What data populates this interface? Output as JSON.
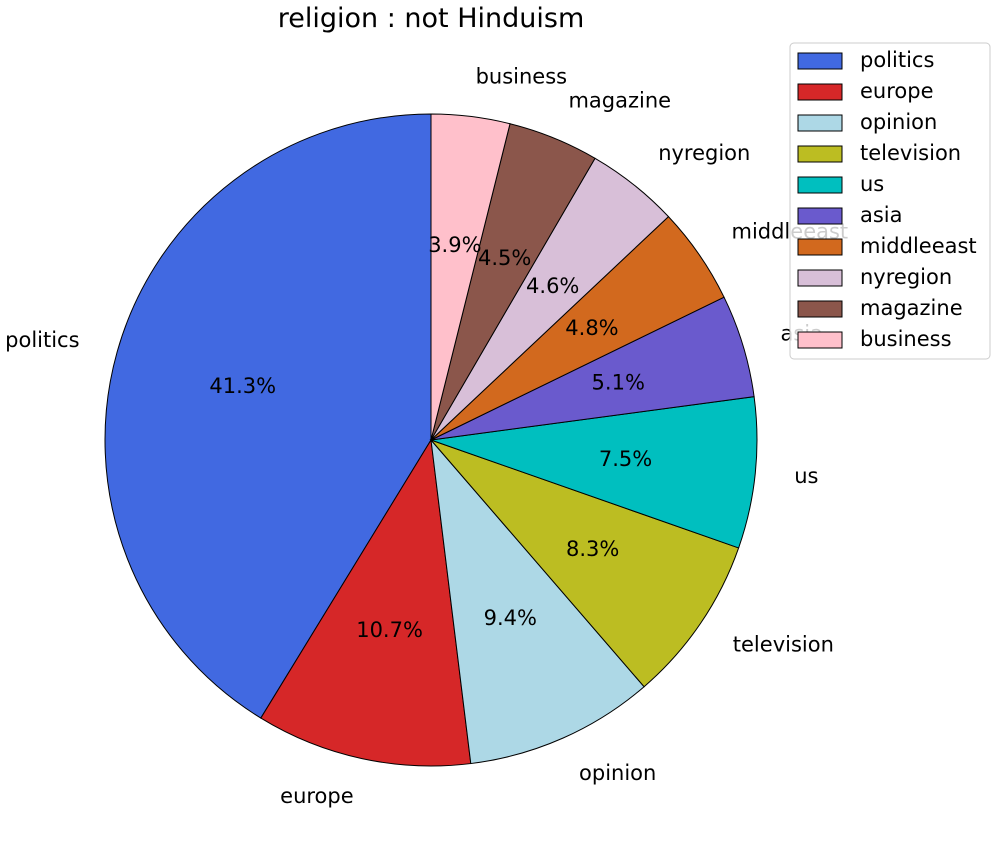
{
  "chart_data": {
    "type": "pie",
    "title": "religion : not Hinduism",
    "start_angle_deg": 90,
    "direction": "counterclockwise",
    "legend_position": "top-right",
    "slices": [
      {
        "label": "politics",
        "value": 41.3,
        "pct_label": "41.3%",
        "color": "#4169e1"
      },
      {
        "label": "europe",
        "value": 10.7,
        "pct_label": "10.7%",
        "color": "#d62728"
      },
      {
        "label": "opinion",
        "value": 9.4,
        "pct_label": "9.4%",
        "color": "#add8e6"
      },
      {
        "label": "television",
        "value": 8.3,
        "pct_label": "8.3%",
        "color": "#bcbd22"
      },
      {
        "label": "us",
        "value": 7.5,
        "pct_label": "7.5%",
        "color": "#00bfbf"
      },
      {
        "label": "asia",
        "value": 5.1,
        "pct_label": "5.1%",
        "color": "#6a5acd"
      },
      {
        "label": "middleeast",
        "value": 4.8,
        "pct_label": "4.8%",
        "color": "#d2691e"
      },
      {
        "label": "nyregion",
        "value": 4.6,
        "pct_label": "4.6%",
        "color": "#d8bfd8"
      },
      {
        "label": "magazine",
        "value": 4.5,
        "pct_label": "4.5%",
        "color": "#8b564b"
      },
      {
        "label": "business",
        "value": 3.9,
        "pct_label": "3.9%",
        "color": "#ffc0cb"
      }
    ]
  }
}
